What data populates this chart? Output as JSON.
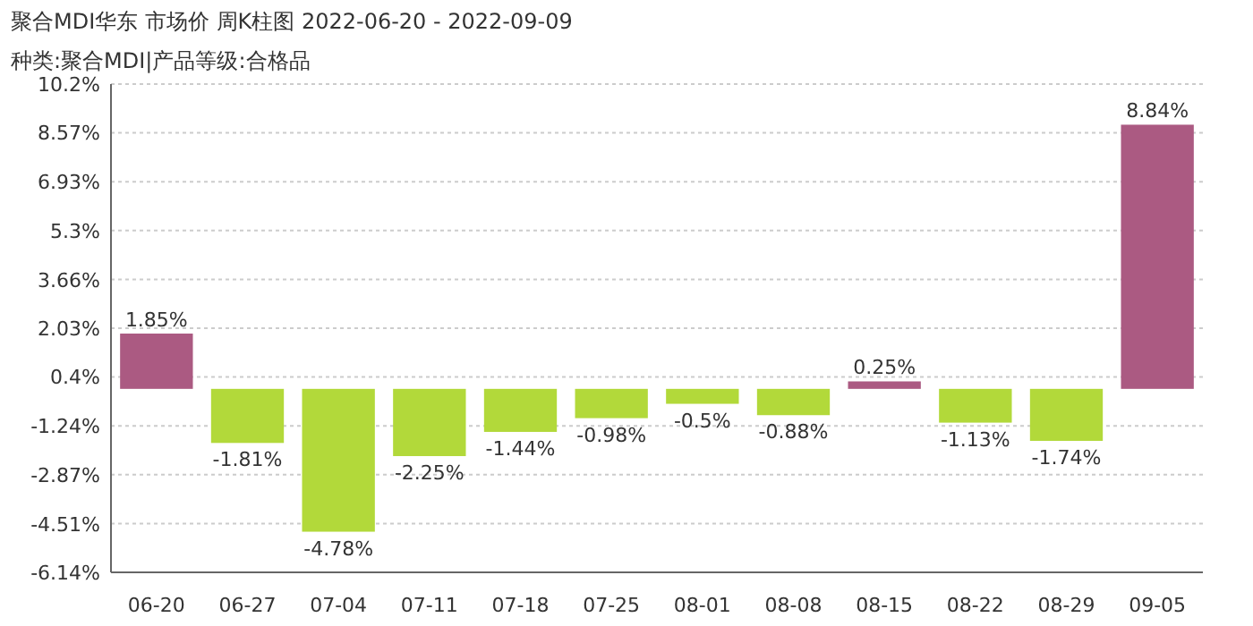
{
  "chart_data": {
    "type": "bar",
    "title": "聚合MDI华东 市场价 周K柱图 2022-06-20 - 2022-09-09",
    "subtitle": "种类:聚合MDI|产品等级:合格品",
    "categories": [
      "06-20",
      "06-27",
      "07-04",
      "07-11",
      "07-18",
      "07-25",
      "08-01",
      "08-08",
      "08-15",
      "08-22",
      "08-29",
      "09-05"
    ],
    "values": [
      1.85,
      -1.81,
      -4.78,
      -2.25,
      -1.44,
      -0.98,
      -0.5,
      -0.88,
      0.25,
      -1.13,
      -1.74,
      8.84
    ],
    "colors": [
      "#ab5a82",
      "#b2d93a",
      "#b2d93a",
      "#b2d93a",
      "#b2d93a",
      "#b2d93a",
      "#b2d93a",
      "#b2d93a",
      "#ab5a82",
      "#b2d93a",
      "#b2d93a",
      "#ab5a82"
    ],
    "value_labels": [
      "1.85%",
      "-1.81%",
      "-4.78%",
      "-2.25%",
      "-1.44%",
      "-0.98%",
      "-0.5%",
      "-0.88%",
      "0.25%",
      "-1.13%",
      "-1.74%",
      "8.84%"
    ],
    "ylim": [
      -6.14,
      10.2
    ],
    "yticks": [
      {
        "value": 10.2,
        "label": "10.2%"
      },
      {
        "value": 8.57,
        "label": "8.57%"
      },
      {
        "value": 6.93,
        "label": "6.93%"
      },
      {
        "value": 5.3,
        "label": "5.3%"
      },
      {
        "value": 3.66,
        "label": "3.66%"
      },
      {
        "value": 2.03,
        "label": "2.03%"
      },
      {
        "value": 0.4,
        "label": "0.4%"
      },
      {
        "value": -1.24,
        "label": "-1.24%"
      },
      {
        "value": -2.87,
        "label": "-2.87%"
      },
      {
        "value": -4.51,
        "label": "-4.51%"
      },
      {
        "value": -6.14,
        "label": "-6.14%"
      }
    ],
    "grid": "y"
  }
}
